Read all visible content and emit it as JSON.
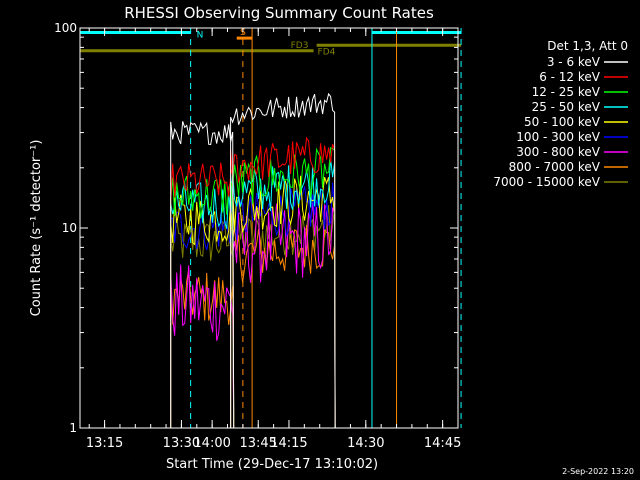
{
  "chart_data": {
    "type": "line",
    "title": "RHESSI Observing Summary Count Rates",
    "xlabel": "Start Time (29-Dec-17 13:10:02)",
    "ylabel": "Count Rate (s⁻¹ detector⁻¹)",
    "yscale": "log",
    "ylim": [
      1,
      100
    ],
    "y_ticks": [
      {
        "value": 1,
        "label": "1"
      },
      {
        "value": 10,
        "label": "10"
      },
      {
        "value": 100,
        "label": "100"
      }
    ],
    "xlim_minutes": [
      13.17,
      14.8
    ],
    "x_ticks": [
      {
        "value": 13.25,
        "label": "13:15"
      },
      {
        "value": 13.5,
        "label": "13:30"
      },
      {
        "value": 13.75,
        "label": "13:45"
      },
      {
        "value": 14.0,
        "label": "14:00"
      },
      {
        "value": 14.25,
        "label": "14:15"
      },
      {
        "value": 14.5,
        "label": "14:30"
      },
      {
        "value": 14.75,
        "label": "14:45"
      }
    ],
    "legend_header": "Det 1,3, Att 0",
    "legend_placement": "right",
    "series": [
      {
        "name": "3 - 6 keV",
        "color": "#ffffff",
        "seg1": 30,
        "seg2": 40,
        "noise": 0.06
      },
      {
        "name": "6 - 12 keV",
        "color": "#ff0000",
        "seg1": 17,
        "seg2": 22,
        "noise": 0.1
      },
      {
        "name": "12 - 25 keV",
        "color": "#00ff00",
        "seg1": 14.5,
        "seg2": 18,
        "noise": 0.12
      },
      {
        "name": "25 - 50 keV",
        "color": "#00ffff",
        "seg1": 13,
        "seg2": 16,
        "noise": 0.12
      },
      {
        "name": "50 - 100 keV",
        "color": "#ffff00",
        "seg1": 11,
        "seg2": 13.5,
        "noise": 0.13
      },
      {
        "name": "100 - 300 keV",
        "color": "#0000ff",
        "seg1": 10,
        "seg2": 12,
        "noise": 0.12
      },
      {
        "name": "300 - 800 keV",
        "color": "#ff00ff",
        "seg1": 4.2,
        "seg2": 8.5,
        "noise": 0.2
      },
      {
        "name": "800 - 7000 keV",
        "color": "#ff8800",
        "seg1": 4.5,
        "seg2": 7.8,
        "noise": 0.14
      },
      {
        "name": "7000 - 15000 keV",
        "color": "#808000",
        "seg1": 8.5,
        "seg2": 9.5,
        "noise": 0.12
      }
    ],
    "data_segments": [
      [
        13.465,
        13.67
      ],
      [
        14.06,
        14.4
      ]
    ],
    "vertical_markers": [
      {
        "time": 13.17,
        "color": "#00ffff",
        "style": "solid"
      },
      {
        "time": 13.53,
        "color": "#00ffff",
        "style": "dashed"
      },
      {
        "time": 13.73,
        "color": "#ff8800",
        "style": "solid"
      },
      {
        "time": 14.1,
        "color": "#ff8800",
        "style": "dashed"
      },
      {
        "time": 14.52,
        "color": "#00ffff",
        "style": "solid"
      },
      {
        "time": 14.6,
        "color": "#ff8800",
        "style": "solid"
      },
      {
        "time": 14.81,
        "color": "#00ffff",
        "style": "dashed"
      }
    ],
    "flag_bars": [
      {
        "label": "N",
        "color": "#00ffff",
        "spans": [
          [
            13.17,
            13.53
          ],
          [
            14.52,
            14.81
          ]
        ],
        "y": 95
      },
      {
        "label": "S",
        "color": "#ff8800",
        "spans": [
          [
            13.73,
            14.08
          ]
        ],
        "y": 89
      },
      {
        "label": "FD3",
        "color": "#808000",
        "spans": [
          [
            13.94,
            14.81
          ]
        ],
        "y": 82
      },
      {
        "label": "FD4",
        "color": "#808000",
        "spans": [
          [
            13.17,
            13.93
          ]
        ],
        "y": 77
      }
    ],
    "grid": false,
    "timestamp": "2-Sep-2022 13:20"
  }
}
